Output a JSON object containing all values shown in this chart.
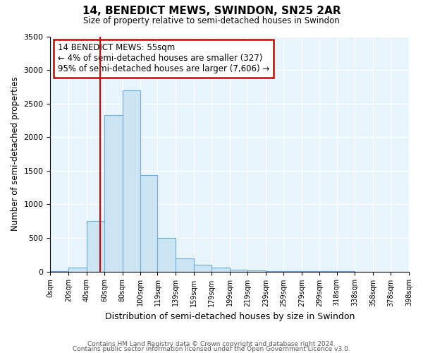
{
  "title": "14, BENEDICT MEWS, SWINDON, SN25 2AR",
  "subtitle": "Size of property relative to semi-detached houses in Swindon",
  "xlabel": "Distribution of semi-detached houses by size in Swindon",
  "ylabel": "Number of semi-detached properties",
  "footnote_line1": "Contains HM Land Registry data © Crown copyright and database right 2024.",
  "footnote_line2": "Contains public sector information licensed under the Open Government Licence v3.0.",
  "annotation_text": "14 BENEDICT MEWS: 55sqm\n← 4% of semi-detached houses are smaller (327)\n95% of semi-detached houses are larger (7,606) →",
  "property_size": 55,
  "bar_left_edges": [
    0,
    20,
    40,
    60,
    80,
    100,
    119,
    139,
    159,
    179,
    199,
    219,
    239,
    259,
    279,
    299,
    318,
    338,
    358,
    378
  ],
  "bar_widths": [
    20,
    20,
    20,
    20,
    20,
    19,
    20,
    20,
    20,
    20,
    20,
    20,
    20,
    20,
    20,
    19,
    20,
    20,
    20,
    20
  ],
  "bar_heights": [
    10,
    60,
    750,
    2330,
    2700,
    1430,
    500,
    200,
    100,
    60,
    30,
    15,
    5,
    3,
    2,
    1,
    1,
    0,
    0,
    0
  ],
  "bar_color": "#cce5f5",
  "bar_edge_color": "#6aaed6",
  "red_line_color": "#cc0000",
  "annotation_box_color": "#ffffff",
  "annotation_box_edge": "#cc0000",
  "background_color": "#e8f4fc",
  "grid_color": "#ffffff",
  "ylim": [
    0,
    3500
  ],
  "tick_labels": [
    "0sqm",
    "20sqm",
    "40sqm",
    "60sqm",
    "80sqm",
    "100sqm",
    "119sqm",
    "139sqm",
    "159sqm",
    "179sqm",
    "199sqm",
    "219sqm",
    "239sqm",
    "259sqm",
    "279sqm",
    "299sqm",
    "318sqm",
    "338sqm",
    "358sqm",
    "378sqm",
    "398sqm"
  ],
  "tick_positions": [
    0,
    20,
    40,
    60,
    80,
    100,
    119,
    139,
    159,
    179,
    199,
    219,
    239,
    259,
    279,
    299,
    318,
    338,
    358,
    378,
    398
  ],
  "yticks": [
    0,
    500,
    1000,
    1500,
    2000,
    2500,
    3000,
    3500
  ]
}
